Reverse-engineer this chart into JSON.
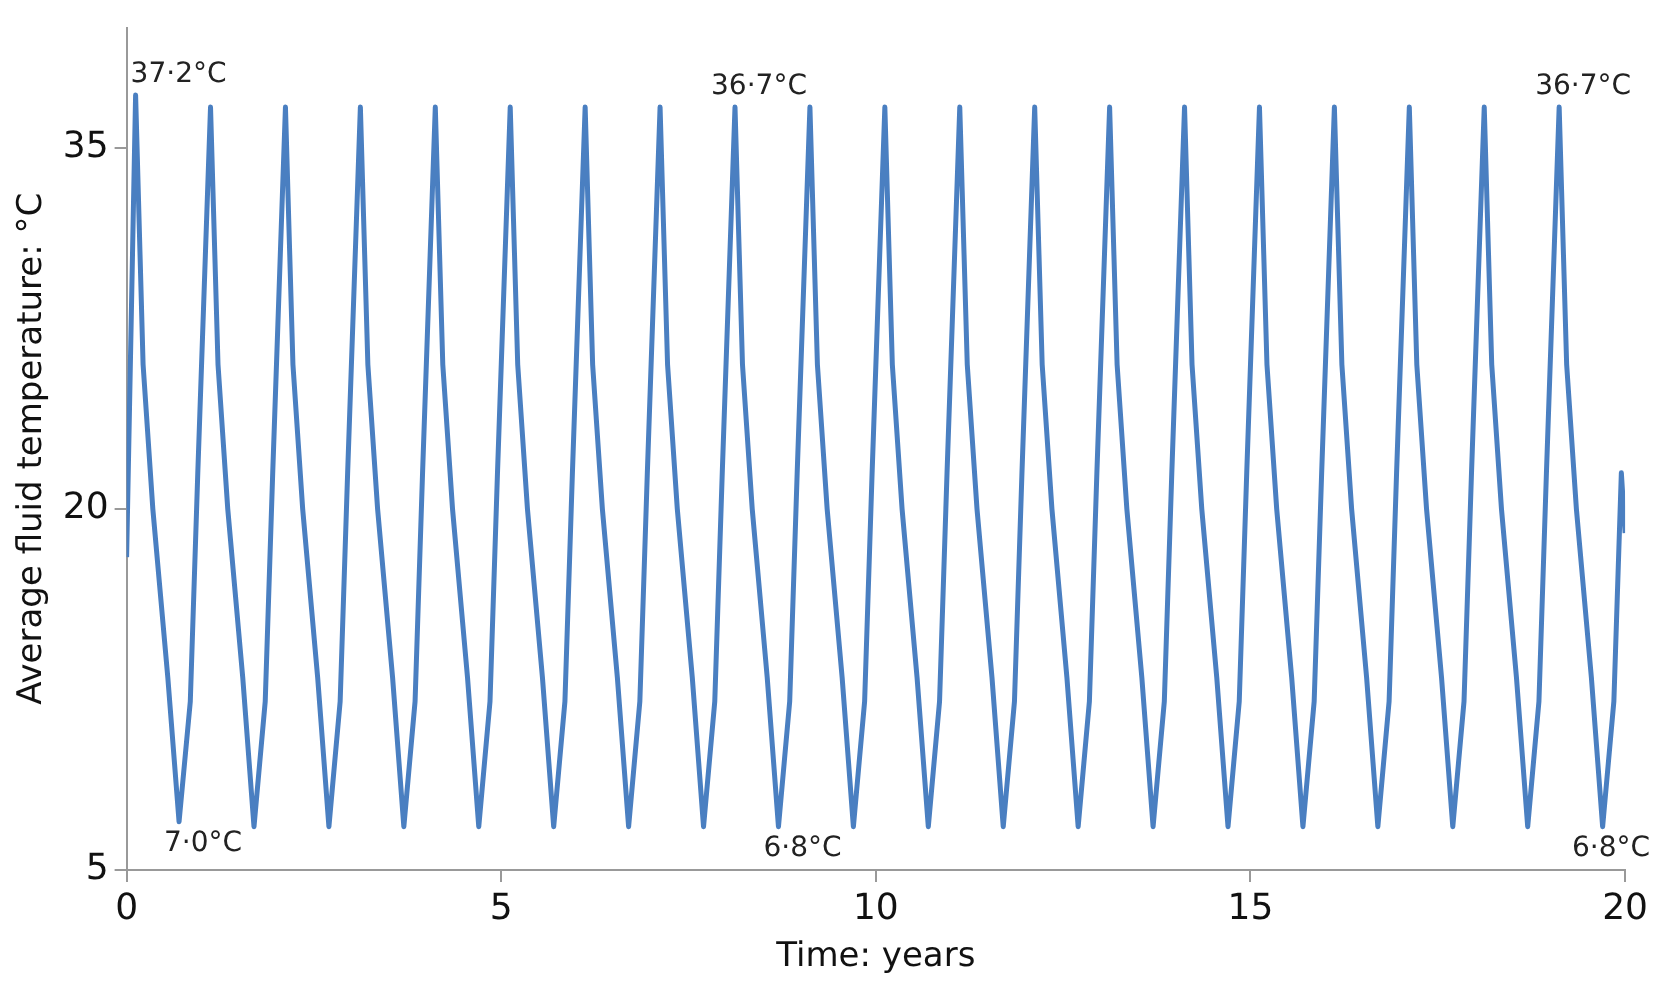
{
  "chart_data": {
    "type": "line",
    "xlabel": "Time: years",
    "ylabel": "Average fluid temperature: °C",
    "xlim": [
      0,
      20
    ],
    "xticks": [
      0,
      5,
      10,
      15,
      20
    ],
    "ylim": [
      5,
      40
    ],
    "yticks": [
      5,
      20,
      35
    ],
    "grid": false,
    "legend": false,
    "marker": "none",
    "line_style": "solid",
    "x": [
      0,
      0.12,
      0.22,
      0.35,
      0.55,
      0.7,
      0.85,
      0.95,
      1.12,
      1.22,
      1.35,
      1.55,
      1.7,
      1.85,
      1.95,
      2.12,
      2.22,
      2.35,
      2.55,
      2.7,
      2.85,
      2.95,
      3.12,
      3.22,
      3.35,
      3.55,
      3.7,
      3.85,
      3.95,
      4.12,
      4.22,
      4.35,
      4.55,
      4.7,
      4.85,
      4.95,
      5.12,
      5.22,
      5.35,
      5.55,
      5.7,
      5.85,
      5.95,
      6.12,
      6.22,
      6.35,
      6.55,
      6.7,
      6.85,
      6.95,
      7.12,
      7.22,
      7.35,
      7.55,
      7.7,
      7.85,
      7.95,
      8.12,
      8.22,
      8.35,
      8.55,
      8.7,
      8.85,
      8.95,
      9.12,
      9.22,
      9.35,
      9.55,
      9.7,
      9.85,
      9.95,
      10.12,
      10.22,
      10.35,
      10.55,
      10.7,
      10.85,
      10.95,
      11.12,
      11.22,
      11.35,
      11.55,
      11.7,
      11.85,
      11.95,
      12.12,
      12.22,
      12.35,
      12.55,
      12.7,
      12.85,
      12.95,
      13.12,
      13.22,
      13.35,
      13.55,
      13.7,
      13.85,
      13.95,
      14.12,
      14.22,
      14.35,
      14.55,
      14.7,
      14.85,
      14.95,
      15.12,
      15.22,
      15.35,
      15.55,
      15.7,
      15.85,
      15.95,
      16.12,
      16.22,
      16.35,
      16.55,
      16.7,
      16.85,
      16.95,
      17.12,
      17.22,
      17.35,
      17.55,
      17.7,
      17.85,
      17.95,
      18.12,
      18.22,
      18.35,
      18.55,
      18.7,
      18.85,
      18.95,
      19.12,
      19.22,
      19.35,
      19.55,
      19.7,
      19.85,
      19.95,
      20
    ],
    "series": [
      {
        "color": "#4a7fc1",
        "values": [
          18,
          37.2,
          26,
          20,
          13,
          7.0,
          12,
          21.5,
          36.7,
          26,
          20,
          13,
          6.8,
          12,
          21.5,
          36.7,
          26,
          20,
          13,
          6.8,
          12,
          21.5,
          36.7,
          26,
          20,
          13,
          6.8,
          12,
          21.5,
          36.7,
          26,
          20,
          13,
          6.8,
          12,
          21.5,
          36.7,
          26,
          20,
          13,
          6.8,
          12,
          21.5,
          36.7,
          26,
          20,
          13,
          6.8,
          12,
          21.5,
          36.7,
          26,
          20,
          13,
          6.8,
          12,
          21.5,
          36.7,
          26,
          20,
          13,
          6.8,
          12,
          21.5,
          36.7,
          26,
          20,
          13,
          6.8,
          12,
          21.5,
          36.7,
          26,
          20,
          13,
          6.8,
          12,
          21.5,
          36.7,
          26,
          20,
          13,
          6.8,
          12,
          21.5,
          36.7,
          26,
          20,
          13,
          6.8,
          12,
          21.5,
          36.7,
          26,
          20,
          13,
          6.8,
          12,
          21.5,
          36.7,
          26,
          20,
          13,
          6.8,
          12,
          21.5,
          36.7,
          26,
          20,
          13,
          6.8,
          12,
          21.5,
          36.7,
          26,
          20,
          13,
          6.8,
          12,
          21.5,
          36.7,
          26,
          20,
          13,
          6.8,
          12,
          21.5,
          36.7,
          26,
          20,
          13,
          6.8,
          12,
          21.5,
          36.7,
          26,
          20,
          13,
          6.8,
          12,
          21.5,
          19
        ]
      }
    ],
    "annotations": [
      {
        "text": "37·2°C",
        "x": 0.12,
        "y": 37.2
      },
      {
        "text": "36·7°C",
        "x": 8.12,
        "y": 36.7
      },
      {
        "text": "36·7°C",
        "x": 19.12,
        "y": 36.7
      },
      {
        "text": "7·0°C",
        "x": 0.7,
        "y": 7.0
      },
      {
        "text": "6·8°C",
        "x": 8.7,
        "y": 6.8
      },
      {
        "text": "6·8°C",
        "x": 19.7,
        "y": 6.8
      }
    ]
  }
}
